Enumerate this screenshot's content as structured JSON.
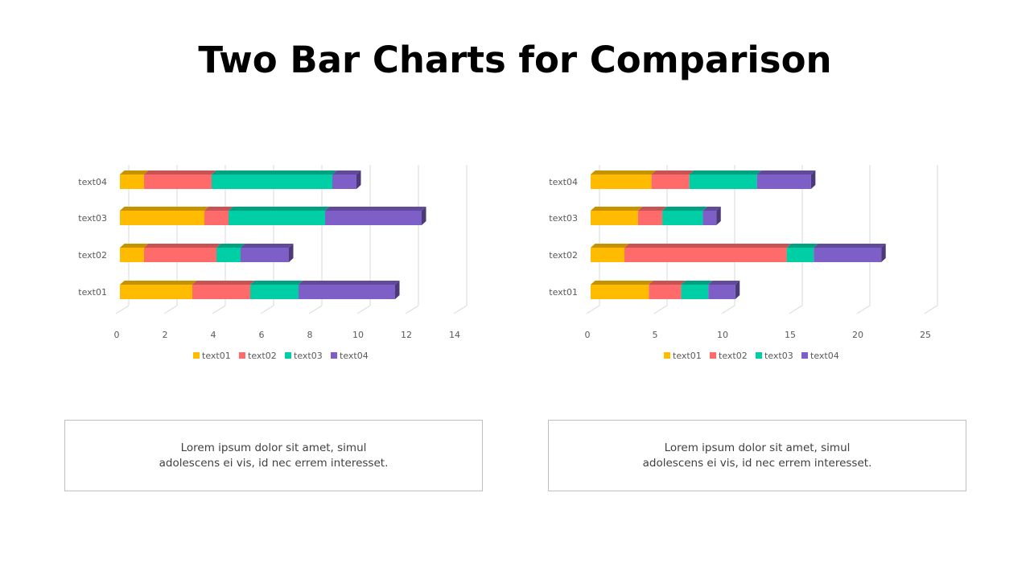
{
  "title": "Two Bar Charts for Comparison",
  "colors": {
    "text01": "#FFBB00",
    "text02": "#FF6B6B",
    "text03": "#00CFA5",
    "text04": "#7E5FC7"
  },
  "chart_data": [
    {
      "type": "bar",
      "orientation": "horizontal-stacked-3d",
      "categories": [
        "text01",
        "text02",
        "text03",
        "text04"
      ],
      "series": [
        {
          "name": "text01",
          "values": [
            3.0,
            1.0,
            3.5,
            1.0
          ]
        },
        {
          "name": "text02",
          "values": [
            2.4,
            3.0,
            1.0,
            2.8
          ]
        },
        {
          "name": "text03",
          "values": [
            2.0,
            1.0,
            4.0,
            5.0
          ]
        },
        {
          "name": "text04",
          "values": [
            4.0,
            2.0,
            4.0,
            1.0
          ]
        }
      ],
      "xlim": [
        0,
        14
      ],
      "xticks": [
        0,
        2,
        4,
        6,
        8,
        10,
        12,
        14
      ],
      "legend": "bottom",
      "grid": true
    },
    {
      "type": "bar",
      "orientation": "horizontal-stacked-3d",
      "categories": [
        "text01",
        "text02",
        "text03",
        "text04"
      ],
      "series": [
        {
          "name": "text01",
          "values": [
            4.3,
            2.5,
            3.5,
            4.5
          ]
        },
        {
          "name": "text02",
          "values": [
            2.4,
            12.0,
            1.8,
            2.8
          ]
        },
        {
          "name": "text03",
          "values": [
            2.0,
            2.0,
            3.0,
            5.0
          ]
        },
        {
          "name": "text04",
          "values": [
            2.0,
            5.0,
            1.0,
            4.0
          ]
        }
      ],
      "xlim": [
        0,
        25
      ],
      "xticks": [
        0,
        5,
        10,
        15,
        20,
        25
      ],
      "legend": "bottom",
      "grid": true
    }
  ],
  "captions": [
    {
      "line1": "Lorem ipsum dolor sit amet, simul",
      "line2": "adolescens ei vis, id nec errem  interesset."
    },
    {
      "line1": "Lorem ipsum dolor sit amet, simul",
      "line2": "adolescens ei vis, id nec errem  interesset."
    }
  ]
}
